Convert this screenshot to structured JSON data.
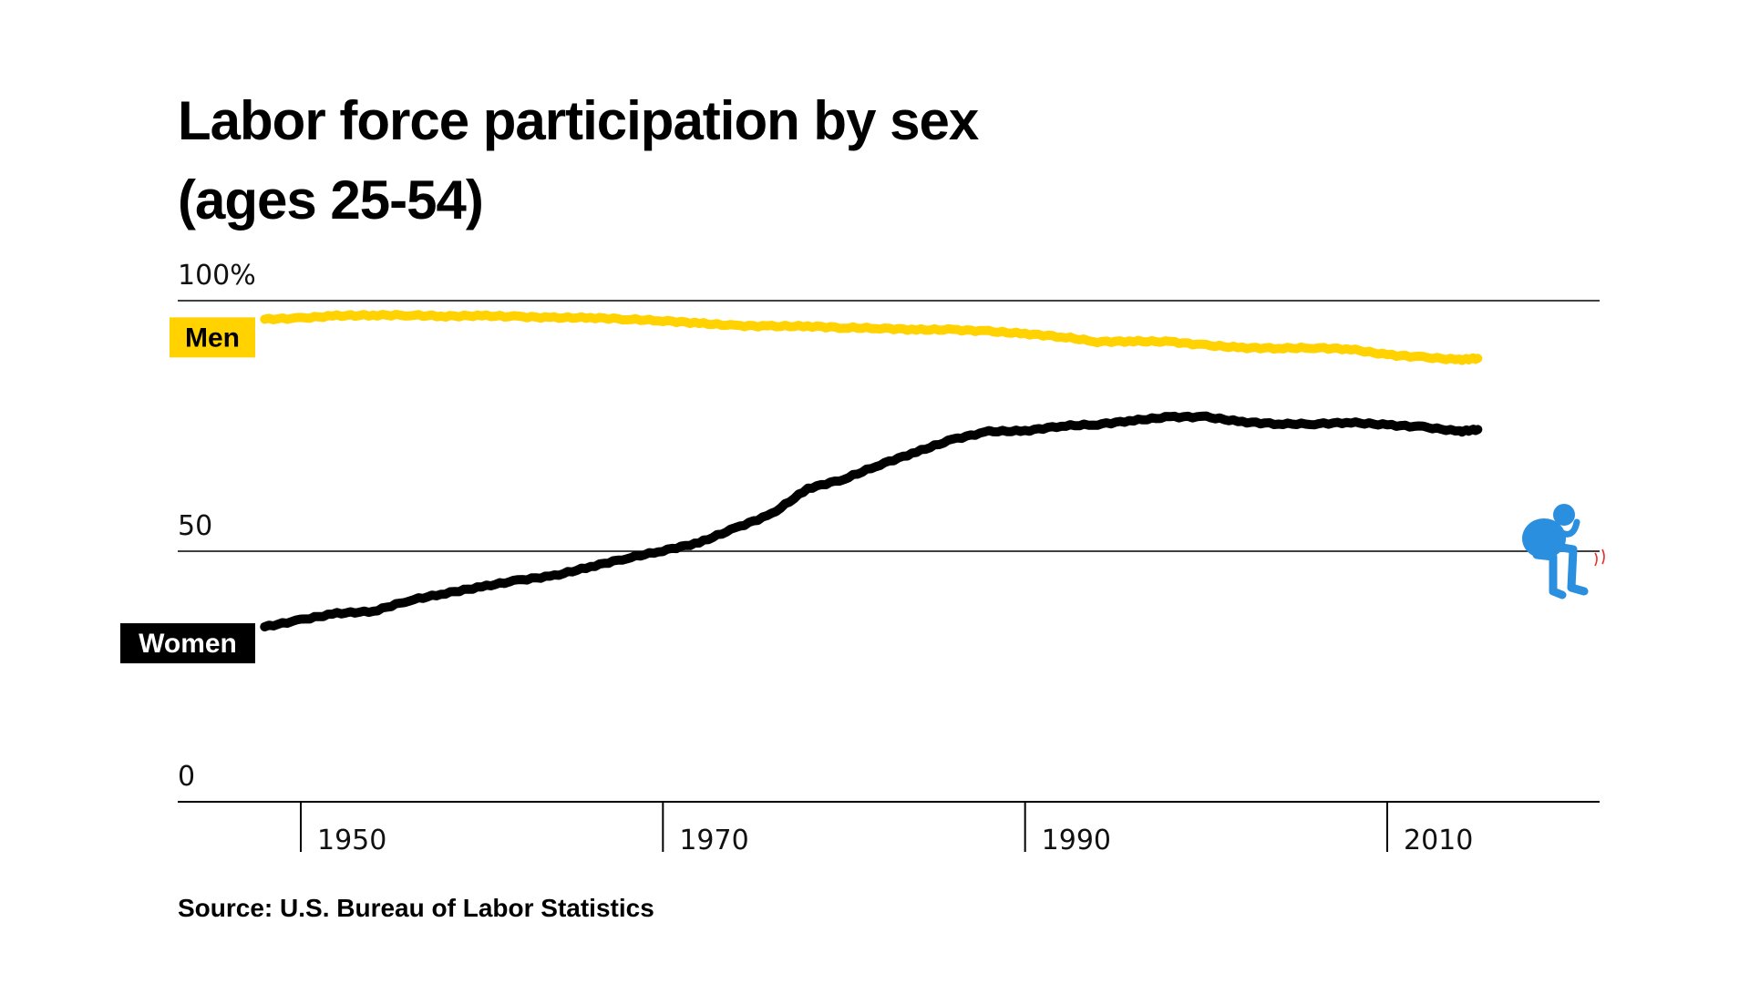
{
  "chart_data": {
    "type": "line",
    "title_line1": "Labor force participation by sex",
    "title_line2": "(ages 25-54)",
    "source": "Source: U.S. Bureau of Labor Statistics",
    "y_ticks": [
      {
        "value": 100,
        "label": "100%"
      },
      {
        "value": 50,
        "label": "50"
      },
      {
        "value": 0,
        "label": "0"
      }
    ],
    "x_ticks": [
      {
        "value": 1950,
        "label": "1950"
      },
      {
        "value": 1970,
        "label": "1970"
      },
      {
        "value": 1990,
        "label": "1990"
      },
      {
        "value": 2010,
        "label": "2010"
      }
    ],
    "xlim": [
      1945,
      2021
    ],
    "ylim": [
      0,
      100
    ],
    "grid_lines_y": [
      100,
      50,
      0
    ],
    "colors": {
      "men": "#FFD200",
      "women": "#000000",
      "men_label_text": "#000000",
      "women_label_text": "#FFFFFF",
      "illustration": "#2B8FE0",
      "illustration_accent": "#E8302B"
    },
    "illustration_icon": "sad-person-sitting-icon",
    "series": [
      {
        "name": "Men",
        "x": [
          1948,
          1950,
          1952,
          1954,
          1956,
          1958,
          1960,
          1962,
          1964,
          1966,
          1968,
          1970,
          1972,
          1974,
          1976,
          1978,
          1980,
          1982,
          1984,
          1986,
          1988,
          1990,
          1992,
          1994,
          1996,
          1998,
          2000,
          2002,
          2004,
          2006,
          2008,
          2010,
          2012,
          2014,
          2015
        ],
        "values": [
          96.3,
          96.5,
          97.0,
          97.1,
          97.1,
          96.9,
          97.0,
          96.8,
          96.6,
          96.6,
          96.3,
          96.0,
          95.5,
          95.0,
          94.9,
          94.9,
          94.6,
          94.5,
          94.2,
          94.2,
          93.9,
          93.4,
          92.8,
          91.8,
          91.9,
          91.8,
          91.1,
          90.6,
          90.5,
          90.6,
          90.3,
          89.2,
          88.7,
          88.2,
          88.5
        ]
      },
      {
        "name": "Women",
        "x": [
          1948,
          1950,
          1952,
          1954,
          1956,
          1958,
          1960,
          1962,
          1964,
          1966,
          1968,
          1970,
          1972,
          1974,
          1976,
          1978,
          1980,
          1982,
          1984,
          1986,
          1988,
          1990,
          1992,
          1994,
          1996,
          1998,
          2000,
          2002,
          2004,
          2006,
          2008,
          2010,
          2012,
          2014,
          2015
        ],
        "values": [
          34.9,
          36.3,
          37.6,
          38.0,
          40.2,
          41.6,
          42.9,
          44.2,
          45.1,
          46.9,
          48.6,
          50.1,
          51.7,
          54.6,
          57.4,
          62.5,
          64.4,
          67.3,
          69.8,
          72.3,
          73.9,
          74.0,
          75.0,
          75.3,
          76.1,
          76.8,
          76.8,
          75.8,
          75.4,
          75.4,
          75.7,
          75.2,
          74.8,
          73.9,
          74.3
        ]
      }
    ]
  }
}
